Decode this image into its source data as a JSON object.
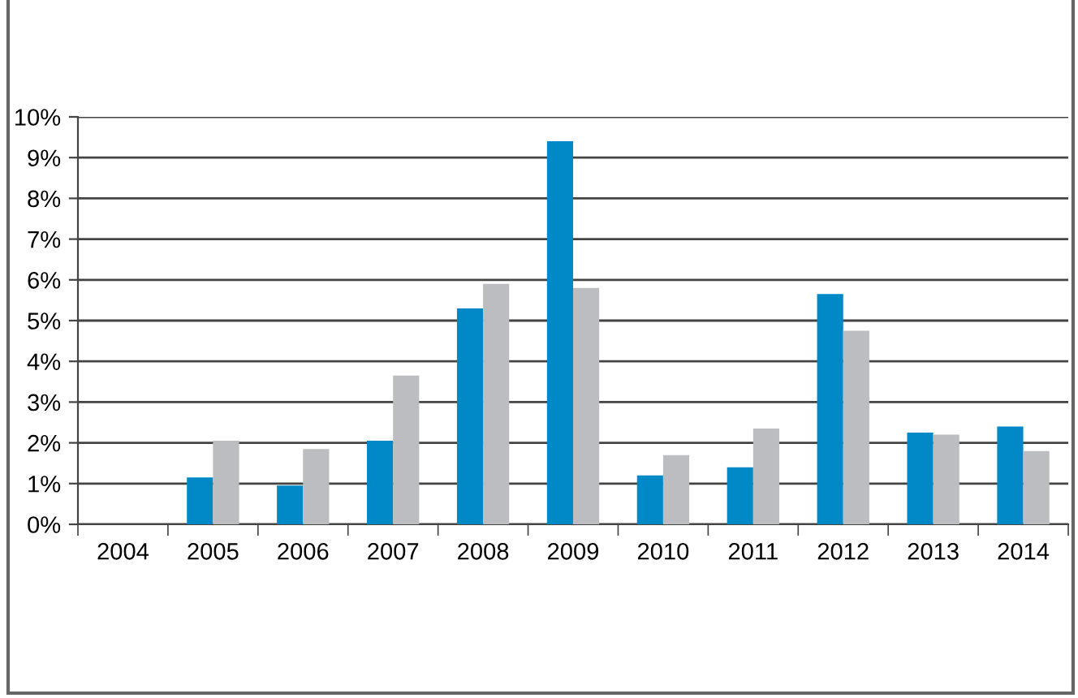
{
  "chart_data": {
    "type": "bar",
    "categories": [
      "2004",
      "2005",
      "2006",
      "2007",
      "2008",
      "2009",
      "2010",
      "2011",
      "2012",
      "2013",
      "2014"
    ],
    "series": [
      {
        "color": "#0089c6",
        "values": [
          null,
          1.15,
          0.95,
          2.05,
          5.3,
          9.4,
          1.2,
          1.4,
          5.65,
          2.25,
          2.4
        ]
      },
      {
        "color": "#bcbdc1",
        "values": [
          null,
          2.05,
          1.85,
          3.65,
          5.9,
          5.8,
          1.7,
          2.35,
          4.75,
          2.2,
          1.8
        ]
      }
    ],
    "ylim": [
      0,
      10
    ],
    "yticks": [
      {
        "value": 0,
        "label": "0%"
      },
      {
        "value": 1,
        "label": "1%"
      },
      {
        "value": 2,
        "label": "2%"
      },
      {
        "value": 3,
        "label": "3%"
      },
      {
        "value": 4,
        "label": "4%"
      },
      {
        "value": 5,
        "label": "5%"
      },
      {
        "value": 6,
        "label": "6%"
      },
      {
        "value": 7,
        "label": "7%"
      },
      {
        "value": 8,
        "label": "8%"
      },
      {
        "value": 9,
        "label": "9%"
      },
      {
        "value": 10,
        "label": "10%"
      }
    ],
    "grid": "y"
  }
}
